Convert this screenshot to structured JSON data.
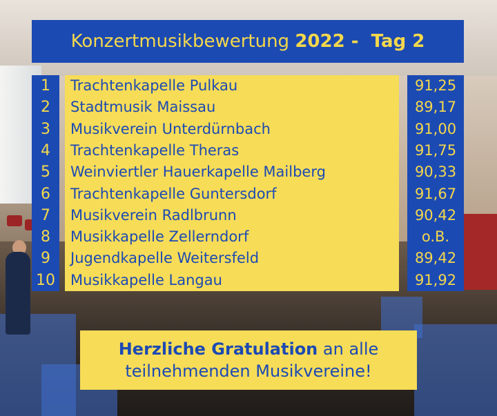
{
  "title": {
    "prefix": "Konzertmusikbewertung ",
    "year": "2022 -  Tag 2"
  },
  "rows": [
    {
      "rank": "1",
      "name": "Trachtenkapelle Pulkau",
      "score": "91,25"
    },
    {
      "rank": "2",
      "name": "Stadtmusik Maissau",
      "score": "89,17"
    },
    {
      "rank": "3",
      "name": "Musikverein Unterdürnbach",
      "score": "91,00"
    },
    {
      "rank": "4",
      "name": "Trachtenkapelle Theras",
      "score": "91,75"
    },
    {
      "rank": "5",
      "name": "Weinviertler Hauerkapelle Mailberg",
      "score": "90,33"
    },
    {
      "rank": "6",
      "name": "Trachtenkapelle Guntersdorf",
      "score": "91,67"
    },
    {
      "rank": "7",
      "name": "Musikverein Radlbrunn",
      "score": "90,42"
    },
    {
      "rank": "8",
      "name": "Musikkapelle Zellerndorf",
      "score": "o.B."
    },
    {
      "rank": "9",
      "name": "Jugendkapelle Weitersfeld",
      "score": "89,42"
    },
    {
      "rank": "10",
      "name": "Musikkapelle Langau",
      "score": "91,92"
    }
  ],
  "congrats": {
    "bold": "Herzliche Gratulation",
    "rest1": " an alle",
    "line2": "teilnehmenden Musikvereine!"
  },
  "colors": {
    "blue": "#1c4ab3",
    "yellow": "#f7dc57",
    "title_yellow": "#f4d84c"
  }
}
